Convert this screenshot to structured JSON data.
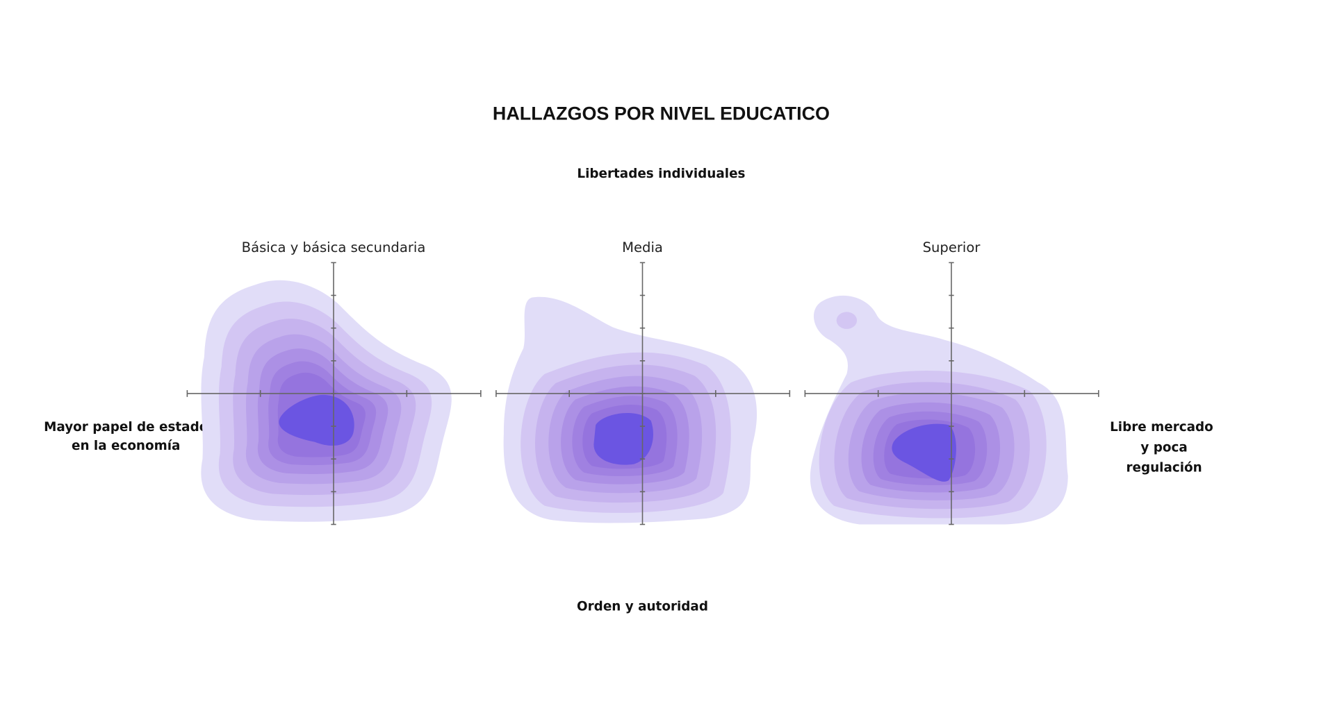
{
  "title": "HALLAZGOS POR NIVEL EDUCATICO",
  "top_label": "Libertades individuales",
  "bottom_label": "Orden y autoridad",
  "left_label": [
    "Mayor papel de estado",
    "en la economía"
  ],
  "right_label": [
    "Libre mercado",
    "y poca",
    "regulación"
  ],
  "panels": [
    {
      "title": "Básica y básica secundaria"
    },
    {
      "title": "Media"
    },
    {
      "title": "Superior"
    }
  ]
}
